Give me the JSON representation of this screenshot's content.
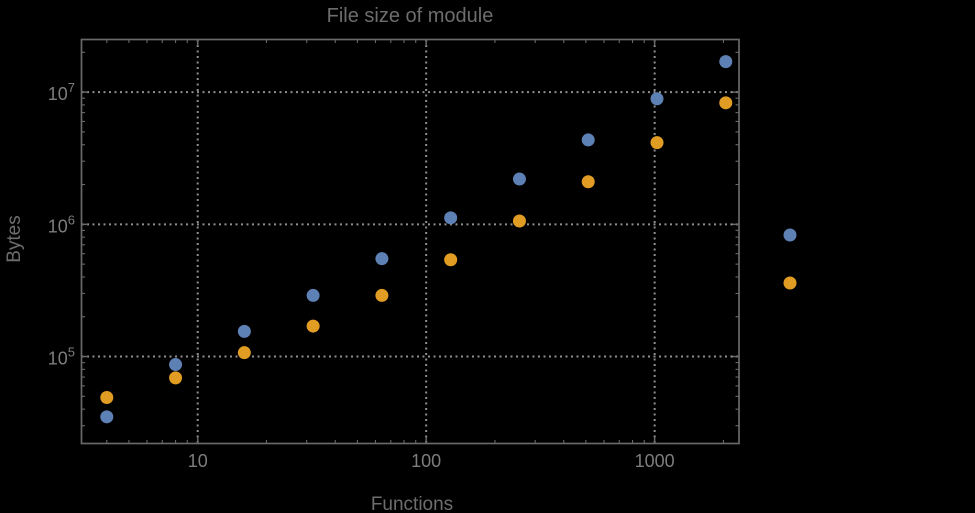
{
  "chart_data": {
    "type": "scatter",
    "title": "File size of module",
    "xlabel": "Functions",
    "ylabel": "Bytes",
    "x_scale": "log",
    "y_scale": "log",
    "xlim": [
      3.1,
      2340
    ],
    "ylim": [
      22000,
      25000000
    ],
    "grid": "dotted-lines-at-decade-ticks",
    "frame": "full-frame-with-inward-log-ticks",
    "x": [
      4,
      8,
      16,
      32,
      64,
      128,
      256,
      512,
      1024,
      2048
    ],
    "series": [
      {
        "name": "series-blue",
        "color": "#5E81B5",
        "values": [
          35000,
          87000,
          155000,
          290000,
          550000,
          1120000,
          2200000,
          4350000,
          8900000,
          17000000
        ]
      },
      {
        "name": "series-orange",
        "color": "#E19C24",
        "values": [
          49000,
          69000,
          107000,
          170000,
          290000,
          540000,
          1060000,
          2100000,
          4150000,
          8300000
        ]
      }
    ],
    "x_ticks": [
      {
        "value": 10,
        "label": "10"
      },
      {
        "value": 100,
        "label": "100"
      },
      {
        "value": 1000,
        "label": "1000"
      }
    ],
    "y_ticks": [
      {
        "value": 100000,
        "mantissa": "10",
        "exponent": "5"
      },
      {
        "value": 1000000,
        "mantissa": "10",
        "exponent": "6"
      },
      {
        "value": 10000000,
        "mantissa": "10",
        "exponent": "7"
      }
    ],
    "legend": {
      "position": "outside-right",
      "markers": [
        {
          "series": "series-blue",
          "color": "#5E81B5",
          "label": ""
        },
        {
          "series": "series-orange",
          "color": "#E19C24",
          "label": ""
        }
      ]
    },
    "marker_shape": "filled-circle"
  },
  "style": {
    "background": "#000000",
    "frame_color": "#696969",
    "grid_color": "#8f8f8f",
    "tick_label_color": "#7d7d7d",
    "title_color": "#6d6d6d"
  }
}
